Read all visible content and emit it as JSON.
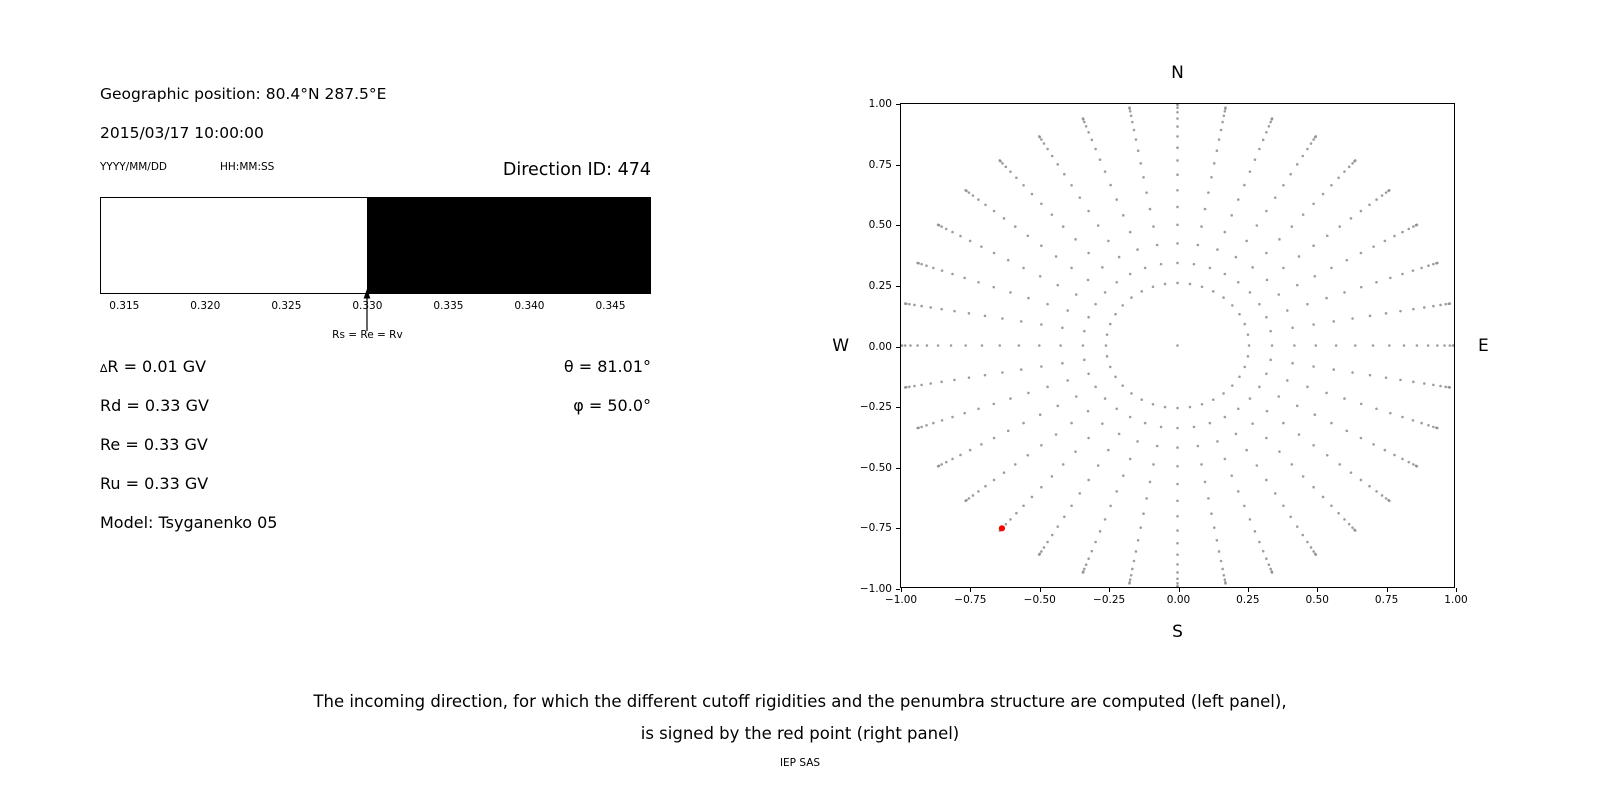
{
  "left_panel": {
    "geographic_position": "Geographic position: 80.4°N 287.5°E",
    "datetime": "2015/03/17 10:00:00",
    "date_format_label": "YYYY/MM/DD",
    "time_format_label": "HH:MM:SS",
    "direction_id_label": "Direction ID: 474",
    "delta_r_symbol": "∆",
    "delta_r_text": "R = 0.01 GV",
    "rd_text": "Rd = 0.33 GV",
    "re_text": "Re = 0.33 GV",
    "ru_text": "Ru = 0.33 GV",
    "model_text": "Model: Tsyganenko 05",
    "theta_text": "θ = 81.01°",
    "phi_text": "φ = 50.0°"
  },
  "caption": {
    "line1": "The incoming direction, for which the different cutoff rigidities and the penumbra structure are computed (left panel),",
    "line2": "is signed by the red point (right panel)",
    "credit": "IEP SAS"
  },
  "chart_data": [
    {
      "type": "area",
      "name": "penumbra-structure",
      "xlim": [
        0.3135,
        0.3475
      ],
      "x_tick_values": [
        0.315,
        0.32,
        0.325,
        0.33,
        0.335,
        0.34,
        0.345
      ],
      "x_tick_labels": [
        "0.315",
        "0.320",
        "0.325",
        "0.330",
        "0.335",
        "0.340",
        "0.345"
      ],
      "bands": [
        {
          "from": 0.3135,
          "to": 0.33,
          "color": "#ffffff"
        },
        {
          "from": 0.33,
          "to": 0.3475,
          "color": "#000000"
        }
      ],
      "marker": {
        "x": 0.33,
        "label": "Rs = Re = Rv"
      }
    },
    {
      "type": "scatter",
      "name": "incoming-direction-map",
      "xlim": [
        -1.0,
        1.0
      ],
      "ylim": [
        -1.0,
        1.0
      ],
      "x_tick_values": [
        -1.0,
        -0.75,
        -0.5,
        -0.25,
        0.0,
        0.25,
        0.5,
        0.75,
        1.0
      ],
      "x_tick_labels": [
        "−1.00",
        "−0.75",
        "−0.50",
        "−0.25",
        "0.00",
        "0.25",
        "0.50",
        "0.75",
        "1.00"
      ],
      "y_tick_values": [
        -1.0,
        -0.75,
        -0.5,
        -0.25,
        0.0,
        0.25,
        0.5,
        0.75,
        1.0
      ],
      "y_tick_labels": [
        "−1.00",
        "−0.75",
        "−0.50",
        "−0.25",
        "0.00",
        "0.25",
        "0.50",
        "0.75",
        "1.00"
      ],
      "direction_labels": {
        "top": "N",
        "bottom": "S",
        "left": "W",
        "right": "E"
      },
      "grid_points": {
        "azimuth_start_deg": 0,
        "azimuth_step_deg": 10,
        "azimuth_count": 36,
        "radii": [
          0.2588,
          0.342,
          0.4226,
          0.5,
          0.5736,
          0.6428,
          0.7071,
          0.766,
          0.819,
          0.866,
          0.9063,
          0.9397,
          0.9659,
          0.9848,
          0.9962,
          1.0
        ],
        "center_point": [
          0,
          0
        ],
        "color": "#8c8c8c",
        "size": 1.3
      },
      "red_point": {
        "x": -0.635,
        "y": -0.757,
        "color": "#ff0000"
      }
    }
  ]
}
